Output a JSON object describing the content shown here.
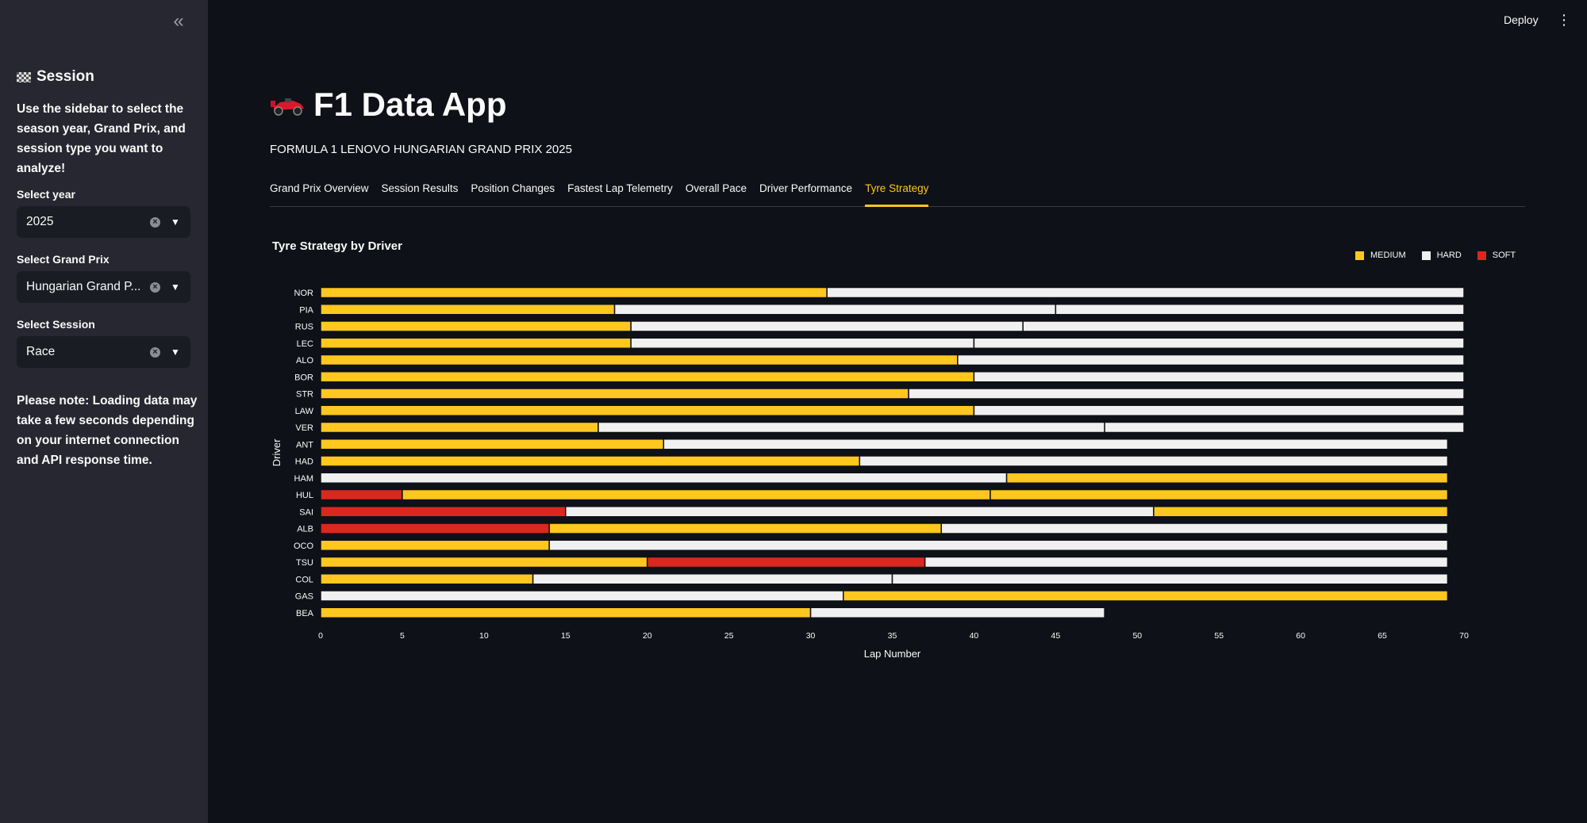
{
  "sidebar": {
    "collapse_glyph": "«",
    "title": "Session",
    "description": "Use the sidebar to select the season year, Grand Prix, and session type you want to analyze!",
    "year": {
      "label": "Select year",
      "value": "2025"
    },
    "grand_prix": {
      "label": "Select Grand Prix",
      "value": "Hungarian Grand P..."
    },
    "session": {
      "label": "Select Session",
      "value": "Race"
    },
    "note_bold": "Please note:",
    "note_text": " Loading data may take a few seconds depending on your internet connection and API response time."
  },
  "header": {
    "deploy_label": "Deploy",
    "menu_glyph": "⋮"
  },
  "main": {
    "title": "F1 Data App",
    "subtitle": "FORMULA 1 LENOVO HUNGARIAN GRAND PRIX 2025",
    "tabs": [
      {
        "label": "Grand Prix Overview"
      },
      {
        "label": "Session Results"
      },
      {
        "label": "Position Changes"
      },
      {
        "label": "Fastest Lap Telemetry"
      },
      {
        "label": "Overall Pace"
      },
      {
        "label": "Driver Performance"
      },
      {
        "label": "Tyre Strategy",
        "active": true
      }
    ]
  },
  "chart_data": {
    "type": "bar",
    "orientation": "horizontal-stacked",
    "title": "Tyre Strategy by Driver",
    "xlabel": "Lap Number",
    "ylabel": "Driver",
    "xlim": [
      0,
      70
    ],
    "xticks": [
      0,
      5,
      10,
      15,
      20,
      25,
      30,
      35,
      40,
      45,
      50,
      55,
      60,
      65,
      70
    ],
    "legend_position": "top-right",
    "compounds": [
      {
        "name": "MEDIUM",
        "color": "#ffc71f"
      },
      {
        "name": "HARD",
        "color": "#f0f0f0"
      },
      {
        "name": "SOFT",
        "color": "#d9281e"
      }
    ],
    "drivers": [
      {
        "name": "NOR",
        "stints": [
          {
            "compound": "MEDIUM",
            "start": 0,
            "end": 31
          },
          {
            "compound": "HARD",
            "start": 31,
            "end": 70
          }
        ]
      },
      {
        "name": "PIA",
        "stints": [
          {
            "compound": "MEDIUM",
            "start": 0,
            "end": 18
          },
          {
            "compound": "HARD",
            "start": 18,
            "end": 45
          },
          {
            "compound": "HARD",
            "start": 45,
            "end": 70
          }
        ]
      },
      {
        "name": "RUS",
        "stints": [
          {
            "compound": "MEDIUM",
            "start": 0,
            "end": 19
          },
          {
            "compound": "HARD",
            "start": 19,
            "end": 43
          },
          {
            "compound": "HARD",
            "start": 43,
            "end": 70
          }
        ]
      },
      {
        "name": "LEC",
        "stints": [
          {
            "compound": "MEDIUM",
            "start": 0,
            "end": 19
          },
          {
            "compound": "HARD",
            "start": 19,
            "end": 40
          },
          {
            "compound": "HARD",
            "start": 40,
            "end": 70
          }
        ]
      },
      {
        "name": "ALO",
        "stints": [
          {
            "compound": "MEDIUM",
            "start": 0,
            "end": 39
          },
          {
            "compound": "HARD",
            "start": 39,
            "end": 70
          }
        ]
      },
      {
        "name": "BOR",
        "stints": [
          {
            "compound": "MEDIUM",
            "start": 0,
            "end": 40
          },
          {
            "compound": "HARD",
            "start": 40,
            "end": 70
          }
        ]
      },
      {
        "name": "STR",
        "stints": [
          {
            "compound": "MEDIUM",
            "start": 0,
            "end": 36
          },
          {
            "compound": "HARD",
            "start": 36,
            "end": 70
          }
        ]
      },
      {
        "name": "LAW",
        "stints": [
          {
            "compound": "MEDIUM",
            "start": 0,
            "end": 40
          },
          {
            "compound": "HARD",
            "start": 40,
            "end": 70
          }
        ]
      },
      {
        "name": "VER",
        "stints": [
          {
            "compound": "MEDIUM",
            "start": 0,
            "end": 17
          },
          {
            "compound": "HARD",
            "start": 17,
            "end": 48
          },
          {
            "compound": "HARD",
            "start": 48,
            "end": 70
          }
        ]
      },
      {
        "name": "ANT",
        "stints": [
          {
            "compound": "MEDIUM",
            "start": 0,
            "end": 21
          },
          {
            "compound": "HARD",
            "start": 21,
            "end": 69
          }
        ]
      },
      {
        "name": "HAD",
        "stints": [
          {
            "compound": "MEDIUM",
            "start": 0,
            "end": 33
          },
          {
            "compound": "HARD",
            "start": 33,
            "end": 69
          }
        ]
      },
      {
        "name": "HAM",
        "stints": [
          {
            "compound": "HARD",
            "start": 0,
            "end": 42
          },
          {
            "compound": "MEDIUM",
            "start": 42,
            "end": 69
          }
        ]
      },
      {
        "name": "HUL",
        "stints": [
          {
            "compound": "SOFT",
            "start": 0,
            "end": 5
          },
          {
            "compound": "MEDIUM",
            "start": 5,
            "end": 41
          },
          {
            "compound": "MEDIUM",
            "start": 41,
            "end": 69
          }
        ]
      },
      {
        "name": "SAI",
        "stints": [
          {
            "compound": "SOFT",
            "start": 0,
            "end": 15
          },
          {
            "compound": "HARD",
            "start": 15,
            "end": 51
          },
          {
            "compound": "MEDIUM",
            "start": 51,
            "end": 69
          }
        ]
      },
      {
        "name": "ALB",
        "stints": [
          {
            "compound": "SOFT",
            "start": 0,
            "end": 14
          },
          {
            "compound": "MEDIUM",
            "start": 14,
            "end": 38
          },
          {
            "compound": "HARD",
            "start": 38,
            "end": 69
          }
        ]
      },
      {
        "name": "OCO",
        "stints": [
          {
            "compound": "MEDIUM",
            "start": 0,
            "end": 14
          },
          {
            "compound": "HARD",
            "start": 14,
            "end": 69
          }
        ]
      },
      {
        "name": "TSU",
        "stints": [
          {
            "compound": "MEDIUM",
            "start": 0,
            "end": 20
          },
          {
            "compound": "SOFT",
            "start": 20,
            "end": 37
          },
          {
            "compound": "HARD",
            "start": 37,
            "end": 69
          }
        ]
      },
      {
        "name": "COL",
        "stints": [
          {
            "compound": "MEDIUM",
            "start": 0,
            "end": 13
          },
          {
            "compound": "HARD",
            "start": 13,
            "end": 35
          },
          {
            "compound": "HARD",
            "start": 35,
            "end": 69
          }
        ]
      },
      {
        "name": "GAS",
        "stints": [
          {
            "compound": "HARD",
            "start": 0,
            "end": 32
          },
          {
            "compound": "MEDIUM",
            "start": 32,
            "end": 69
          }
        ]
      },
      {
        "name": "BEA",
        "stints": [
          {
            "compound": "MEDIUM",
            "start": 0,
            "end": 30
          },
          {
            "compound": "HARD",
            "start": 30,
            "end": 48
          }
        ]
      }
    ]
  }
}
